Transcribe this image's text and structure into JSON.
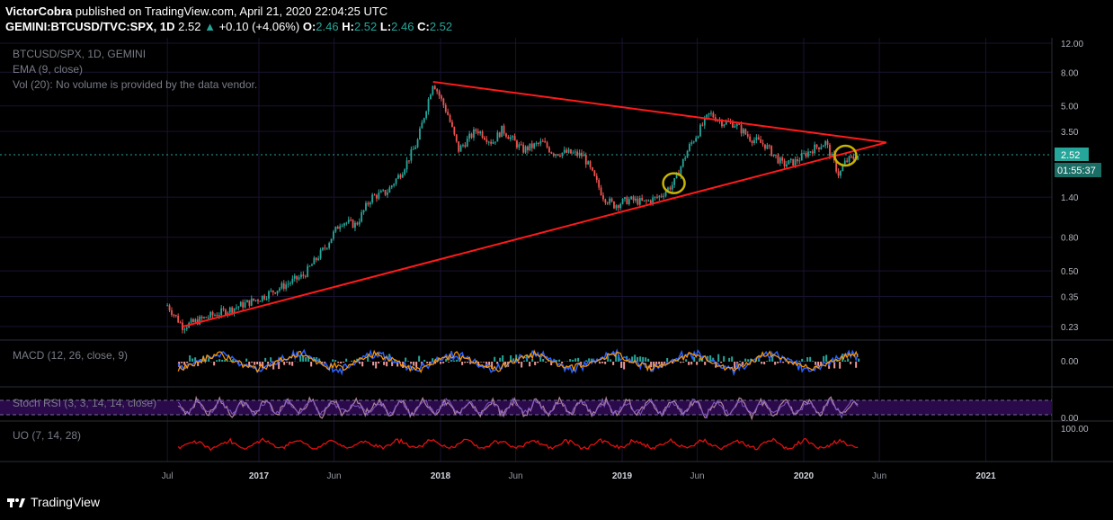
{
  "header": {
    "author": "VictorCobra",
    "published_text": "published on TradingView.com, April 21, 2020 22:04:25 UTC",
    "symbol": "GEMINI:BTCUSD/TVC:SPX, 1D",
    "last": "2.52",
    "change": "+0.10 (+4.06%)",
    "o_label": "O:",
    "o": "2.46",
    "h_label": "H:",
    "h": "2.52",
    "l_label": "L:",
    "l": "2.46",
    "c_label": "C:",
    "c": "2.52"
  },
  "legend": {
    "title": "BTCUSD/SPX, 1D, GEMINI",
    "ema": "EMA (9, close)",
    "vol": "Vol (20): No volume is provided by the data vendor."
  },
  "price_badge": "2.52",
  "countdown_badge": "01:55:37",
  "indicators": {
    "macd": {
      "label": "MACD (12, 26, close, 9)",
      "tick": "0.00"
    },
    "stoch": {
      "label": "Stoch RSI (3, 3, 14, 14, close)",
      "tick": "0.00"
    },
    "uo": {
      "label": "UO (7, 14, 28)",
      "tick": "100.00"
    }
  },
  "footer": {
    "brand": "TradingView"
  },
  "colors": {
    "background": "#000000",
    "candle_up": "#26a69a",
    "candle_down": "#ef5350",
    "trendline": "#ff1a1a",
    "circle": "#c8b400",
    "grid": "#1a1230",
    "macd": "#2962ff",
    "signal": "#ff9800",
    "stoch_band": "#2a0a4a",
    "uo": "#e01010"
  },
  "chart_data": {
    "type": "line",
    "title": "BTCUSD/SPX, 1D, GEMINI",
    "y_scale": "log",
    "ylim": [
      0.2,
      12
    ],
    "y_ticks": [
      "12.00",
      "8.00",
      "5.00",
      "3.50",
      "2.52",
      "1.40",
      "0.80",
      "0.50",
      "0.35",
      "0.23"
    ],
    "x_ticks": [
      "Jul",
      "2017",
      "Jun",
      "2018",
      "Jun",
      "2019",
      "Jun",
      "2020",
      "Jun",
      "2021"
    ],
    "grid": true,
    "series": [
      {
        "name": "BTCUSD/SPX",
        "x": [
          "2016-07-01",
          "2016-08-01",
          "2016-09-15",
          "2016-11-01",
          "2017-01-01",
          "2017-02-15",
          "2017-04-01",
          "2017-05-15",
          "2017-06-15",
          "2017-07-15",
          "2017-08-15",
          "2017-09-15",
          "2017-10-15",
          "2017-11-15",
          "2017-12-17",
          "2018-01-15",
          "2018-02-06",
          "2018-03-15",
          "2018-04-15",
          "2018-05-05",
          "2018-06-15",
          "2018-07-25",
          "2018-08-15",
          "2018-09-15",
          "2018-10-15",
          "2018-11-25",
          "2018-12-15",
          "2019-01-15",
          "2019-02-15",
          "2019-03-15",
          "2019-04-15",
          "2019-05-15",
          "2019-06-26",
          "2019-07-20",
          "2019-08-15",
          "2019-09-15",
          "2019-10-15",
          "2019-11-20",
          "2019-12-15",
          "2020-01-15",
          "2020-02-14",
          "2020-03-12",
          "2020-03-25",
          "2020-04-21"
        ],
        "y": [
          0.31,
          0.23,
          0.26,
          0.29,
          0.34,
          0.4,
          0.47,
          0.7,
          1.0,
          0.95,
          1.4,
          1.5,
          2.0,
          3.0,
          7.0,
          4.5,
          2.7,
          3.6,
          3.0,
          3.6,
          2.7,
          3.0,
          2.6,
          2.6,
          2.5,
          1.4,
          1.25,
          1.35,
          1.3,
          1.4,
          1.7,
          2.8,
          4.5,
          4.0,
          3.9,
          3.2,
          2.9,
          2.2,
          2.3,
          2.7,
          3.0,
          1.9,
          2.3,
          2.52
        ]
      },
      {
        "name": "Upper trendline",
        "x": [
          "2017-12-17",
          "2020-06-15"
        ],
        "y": [
          7.0,
          3.0
        ]
      },
      {
        "name": "Lower trendline",
        "x": [
          "2016-08-01",
          "2020-06-15"
        ],
        "y": [
          0.23,
          3.0
        ]
      }
    ],
    "annotations": [
      {
        "x": "2019-04-15",
        "y": 1.7,
        "shape": "circle"
      },
      {
        "x": "2020-03-25",
        "y": 2.5,
        "shape": "circle"
      }
    ]
  }
}
